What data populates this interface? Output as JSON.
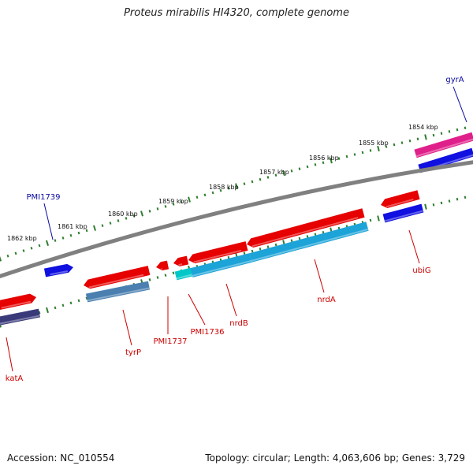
{
  "title": "Proteus mirabilis HI4320, complete genome",
  "footer": {
    "accession": "Accession: NC_010554",
    "summary": "Topology: circular; Length: 4,063,606 bp; Genes: 3,729"
  },
  "colors": {
    "backbone": "#808080",
    "tick": "#2e7d2e",
    "forward_gene": "#e60000",
    "reverse_gene": "#e60000",
    "forward_cds": "#1010e0",
    "label_forward": "#0a0aa0",
    "label_reverse": "#cc0000",
    "nrdB_cds": "#1ca3d8",
    "nrdA_cds": "#1ca3d8",
    "tyrP_cds": "#4a7fb0",
    "katA_cds": "#3a3a7a",
    "gyrA_cds": "#e0208a",
    "PMI1736_cds": "#00c8c8"
  },
  "scale_labels": [
    "1862 kbp",
    "1861 kbp",
    "1860 kbp",
    "1859 kbp",
    "1858 kbp",
    "1857 kbp",
    "1856 kbp",
    "1855 kbp",
    "1854 kbp"
  ],
  "genes": {
    "forward": [
      "PMI1739",
      "gyrA"
    ],
    "reverse": [
      "katA",
      "tyrP",
      "PMI1737",
      "PMI1736",
      "nrdB",
      "nrdA",
      "ubiG"
    ]
  }
}
